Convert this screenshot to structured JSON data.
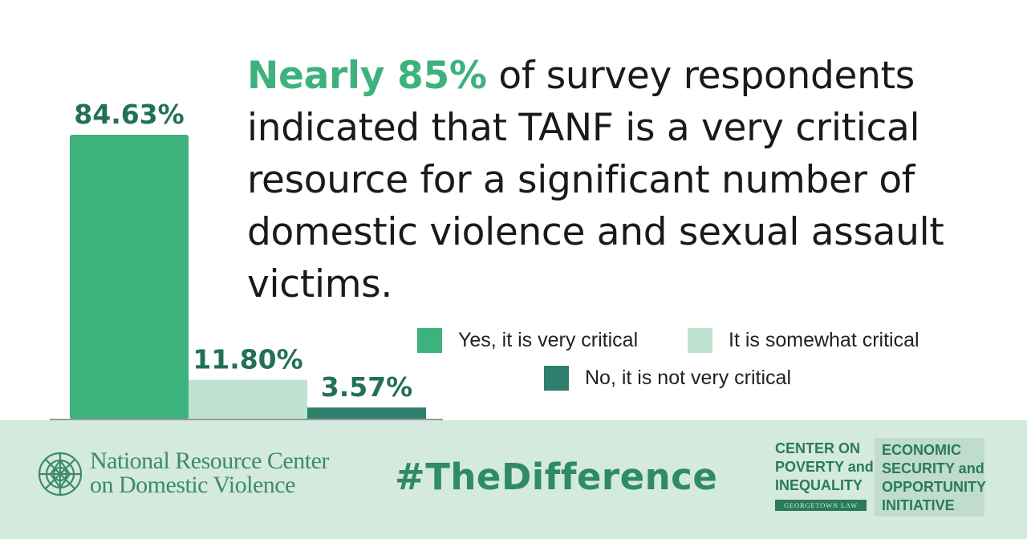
{
  "chart_data": {
    "type": "bar",
    "categories": [
      "Yes, it is very critical",
      "It is somewhat critical",
      "No, it is not very critical"
    ],
    "values": [
      84.63,
      11.8,
      3.57
    ],
    "data_labels": [
      "84.63%",
      "11.80%",
      "3.57%"
    ],
    "colors": [
      "#3db27d",
      "#bfe3d1",
      "#2e7f6c"
    ],
    "ylim": [
      0,
      100
    ],
    "grid": false,
    "legend_position": "right"
  },
  "headline": {
    "highlight": "Nearly 85%",
    "rest": " of survey respondents indicated that TANF is a very critical resource for a significant number of domestic violence and sexual assault victims."
  },
  "legend": [
    {
      "label": "Yes, it is very critical",
      "color": "#3db27d"
    },
    {
      "label": "It is somewhat critical",
      "color": "#bfe3d1"
    },
    {
      "label": "No, it is not very critical",
      "color": "#2e7f6c"
    }
  ],
  "footer": {
    "nrc_line1": "National Resource Center",
    "nrc_line2": "on Domestic Violence",
    "hashtag": "#TheDifference",
    "cpi_lines": [
      "CENTER ON",
      "POVERTY and",
      "INEQUALITY"
    ],
    "cpi_sub": "GEORGETOWN LAW",
    "esoi_lines": [
      "ECONOMIC",
      "SECURITY and",
      "OPPORTUNITY",
      "INITIATIVE"
    ],
    "background": "#d4eade"
  }
}
